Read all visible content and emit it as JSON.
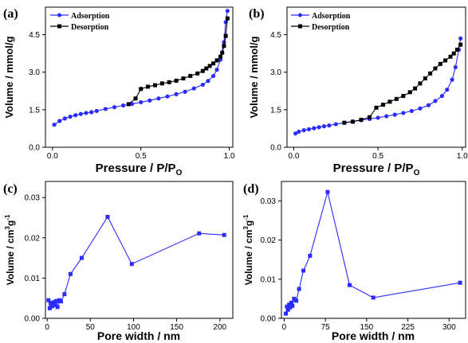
{
  "chart_data": [
    {
      "panel_label": "(a)",
      "type": "line",
      "xlabel": "Pressure / P/P",
      "xlabel_sub": "O",
      "ylabel": "Volume / mmol/g",
      "xlim": [
        -0.04,
        1.02
      ],
      "ylim": [
        0,
        5.6
      ],
      "xticks": [
        0.0,
        0.5,
        1.0
      ],
      "xtick_labels": [
        "0.0",
        "0.5",
        "1.0"
      ],
      "yticks": [
        0,
        1.5,
        3.0,
        4.5
      ],
      "ytick_labels": [
        "0.0",
        "1.5",
        "3.0",
        "4.5"
      ],
      "legend": "top-left",
      "series": [
        {
          "name": "Adsorption",
          "color": "#2b2bff",
          "marker": "circle",
          "x": [
            0.01,
            0.04,
            0.07,
            0.1,
            0.13,
            0.16,
            0.19,
            0.22,
            0.25,
            0.3,
            0.35,
            0.4,
            0.45,
            0.5,
            0.55,
            0.6,
            0.65,
            0.7,
            0.75,
            0.8,
            0.85,
            0.88,
            0.91,
            0.93,
            0.95,
            0.97,
            0.98,
            0.99
          ],
          "y": [
            0.9,
            1.05,
            1.15,
            1.22,
            1.28,
            1.33,
            1.37,
            1.4,
            1.45,
            1.53,
            1.6,
            1.67,
            1.73,
            1.8,
            1.87,
            1.95,
            2.03,
            2.12,
            2.22,
            2.35,
            2.5,
            2.65,
            2.85,
            3.1,
            3.5,
            4.2,
            5.0,
            5.45
          ]
        },
        {
          "name": "Desorption",
          "color": "#000000",
          "marker": "square",
          "x": [
            0.99,
            0.98,
            0.97,
            0.96,
            0.95,
            0.93,
            0.91,
            0.89,
            0.87,
            0.85,
            0.82,
            0.78,
            0.74,
            0.7,
            0.66,
            0.62,
            0.58,
            0.54,
            0.5,
            0.47,
            0.43
          ],
          "y": [
            5.15,
            4.45,
            4.05,
            3.78,
            3.62,
            3.47,
            3.35,
            3.25,
            3.15,
            3.05,
            2.95,
            2.85,
            2.75,
            2.66,
            2.6,
            2.55,
            2.48,
            2.42,
            2.33,
            1.95,
            1.72
          ]
        }
      ]
    },
    {
      "panel_label": "(b)",
      "type": "line",
      "xlabel": "Pressure / P/P",
      "xlabel_sub": "O",
      "ylabel": "Volume / mmol/g",
      "xlim": [
        -0.04,
        1.02
      ],
      "ylim": [
        0,
        5.6
      ],
      "xticks": [
        0.0,
        0.5,
        1.0
      ],
      "xtick_labels": [
        "0.0",
        "0.5",
        "1.0"
      ],
      "yticks": [
        0,
        1.5,
        3.0,
        4.5
      ],
      "ytick_labels": [
        "0.0",
        "1.5",
        "3.0",
        "4.5"
      ],
      "legend": "top-left",
      "series": [
        {
          "name": "Adsorption",
          "color": "#2b2bff",
          "marker": "circle",
          "x": [
            0.01,
            0.03,
            0.06,
            0.09,
            0.12,
            0.15,
            0.18,
            0.21,
            0.25,
            0.3,
            0.35,
            0.4,
            0.45,
            0.5,
            0.55,
            0.6,
            0.65,
            0.7,
            0.75,
            0.8,
            0.84,
            0.88,
            0.91,
            0.94,
            0.96,
            0.98,
            0.99
          ],
          "y": [
            0.55,
            0.62,
            0.68,
            0.72,
            0.76,
            0.8,
            0.84,
            0.87,
            0.92,
            0.98,
            1.03,
            1.08,
            1.13,
            1.18,
            1.24,
            1.3,
            1.37,
            1.45,
            1.55,
            1.68,
            1.85,
            2.05,
            2.3,
            2.7,
            3.2,
            3.9,
            4.35
          ]
        },
        {
          "name": "Desorption",
          "color": "#000000",
          "marker": "square",
          "x": [
            0.99,
            0.97,
            0.95,
            0.93,
            0.9,
            0.87,
            0.84,
            0.81,
            0.78,
            0.75,
            0.72,
            0.69,
            0.65,
            0.61,
            0.57,
            0.53,
            0.49,
            0.45,
            0.4,
            0.35,
            0.3
          ],
          "y": [
            4.1,
            3.9,
            3.75,
            3.62,
            3.47,
            3.33,
            3.15,
            2.95,
            2.75,
            2.55,
            2.35,
            2.2,
            2.05,
            1.93,
            1.82,
            1.7,
            1.58,
            1.2,
            1.1,
            1.02,
            0.98
          ]
        }
      ]
    },
    {
      "panel_label": "(c)",
      "type": "line",
      "xlabel": "Pore width / nm",
      "ylabel": "Volume / cm",
      "ylabel_sup": "3",
      "ylabel_tail": "g",
      "ylabel_tail_sup": "-1",
      "xlim": [
        -2,
        215
      ],
      "ylim": [
        0,
        0.034
      ],
      "xticks": [
        0,
        50,
        100,
        150,
        200
      ],
      "xtick_labels": [
        "0",
        "50",
        "100",
        "150",
        "200"
      ],
      "yticks": [
        0,
        0.01,
        0.02,
        0.03
      ],
      "ytick_labels": [
        "0.00",
        "0.01",
        "0.02",
        "0.03"
      ],
      "series": [
        {
          "color": "#2b2bff",
          "marker": "square",
          "x": [
            1.5,
            3,
            4.5,
            6,
            7.5,
            9,
            10.5,
            12,
            14,
            16,
            20,
            27,
            40,
            70,
            98,
            176,
            205
          ],
          "y": [
            0.0045,
            0.0025,
            0.0038,
            0.003,
            0.004,
            0.0033,
            0.0043,
            0.0028,
            0.0045,
            0.0042,
            0.006,
            0.011,
            0.015,
            0.0252,
            0.0135,
            0.0211,
            0.0207
          ]
        }
      ]
    },
    {
      "panel_label": "(d)",
      "type": "line",
      "xlabel": "Pore width / nm",
      "ylabel": "Volume / cm",
      "ylabel_sup": "3",
      "ylabel_tail": "g",
      "ylabel_tail_sup": "-1",
      "xlim": [
        -5,
        330
      ],
      "ylim": [
        0,
        0.035
      ],
      "xticks": [
        0,
        75,
        150,
        225,
        300
      ],
      "xtick_labels": [
        "0",
        "75",
        "150",
        "225",
        "300"
      ],
      "yticks": [
        0,
        0.01,
        0.02,
        0.03
      ],
      "ytick_labels": [
        "0.00",
        "0.01",
        "0.02",
        "0.03"
      ],
      "series": [
        {
          "color": "#2b2bff",
          "marker": "square",
          "x": [
            3,
            5,
            7,
            9,
            11,
            13,
            15,
            18,
            22,
            27,
            35,
            47,
            79,
            119,
            162,
            320
          ],
          "y": [
            0.0012,
            0.003,
            0.0022,
            0.0035,
            0.0028,
            0.004,
            0.0032,
            0.005,
            0.0045,
            0.0075,
            0.0122,
            0.016,
            0.0323,
            0.0085,
            0.0053,
            0.0091
          ]
        }
      ]
    }
  ]
}
